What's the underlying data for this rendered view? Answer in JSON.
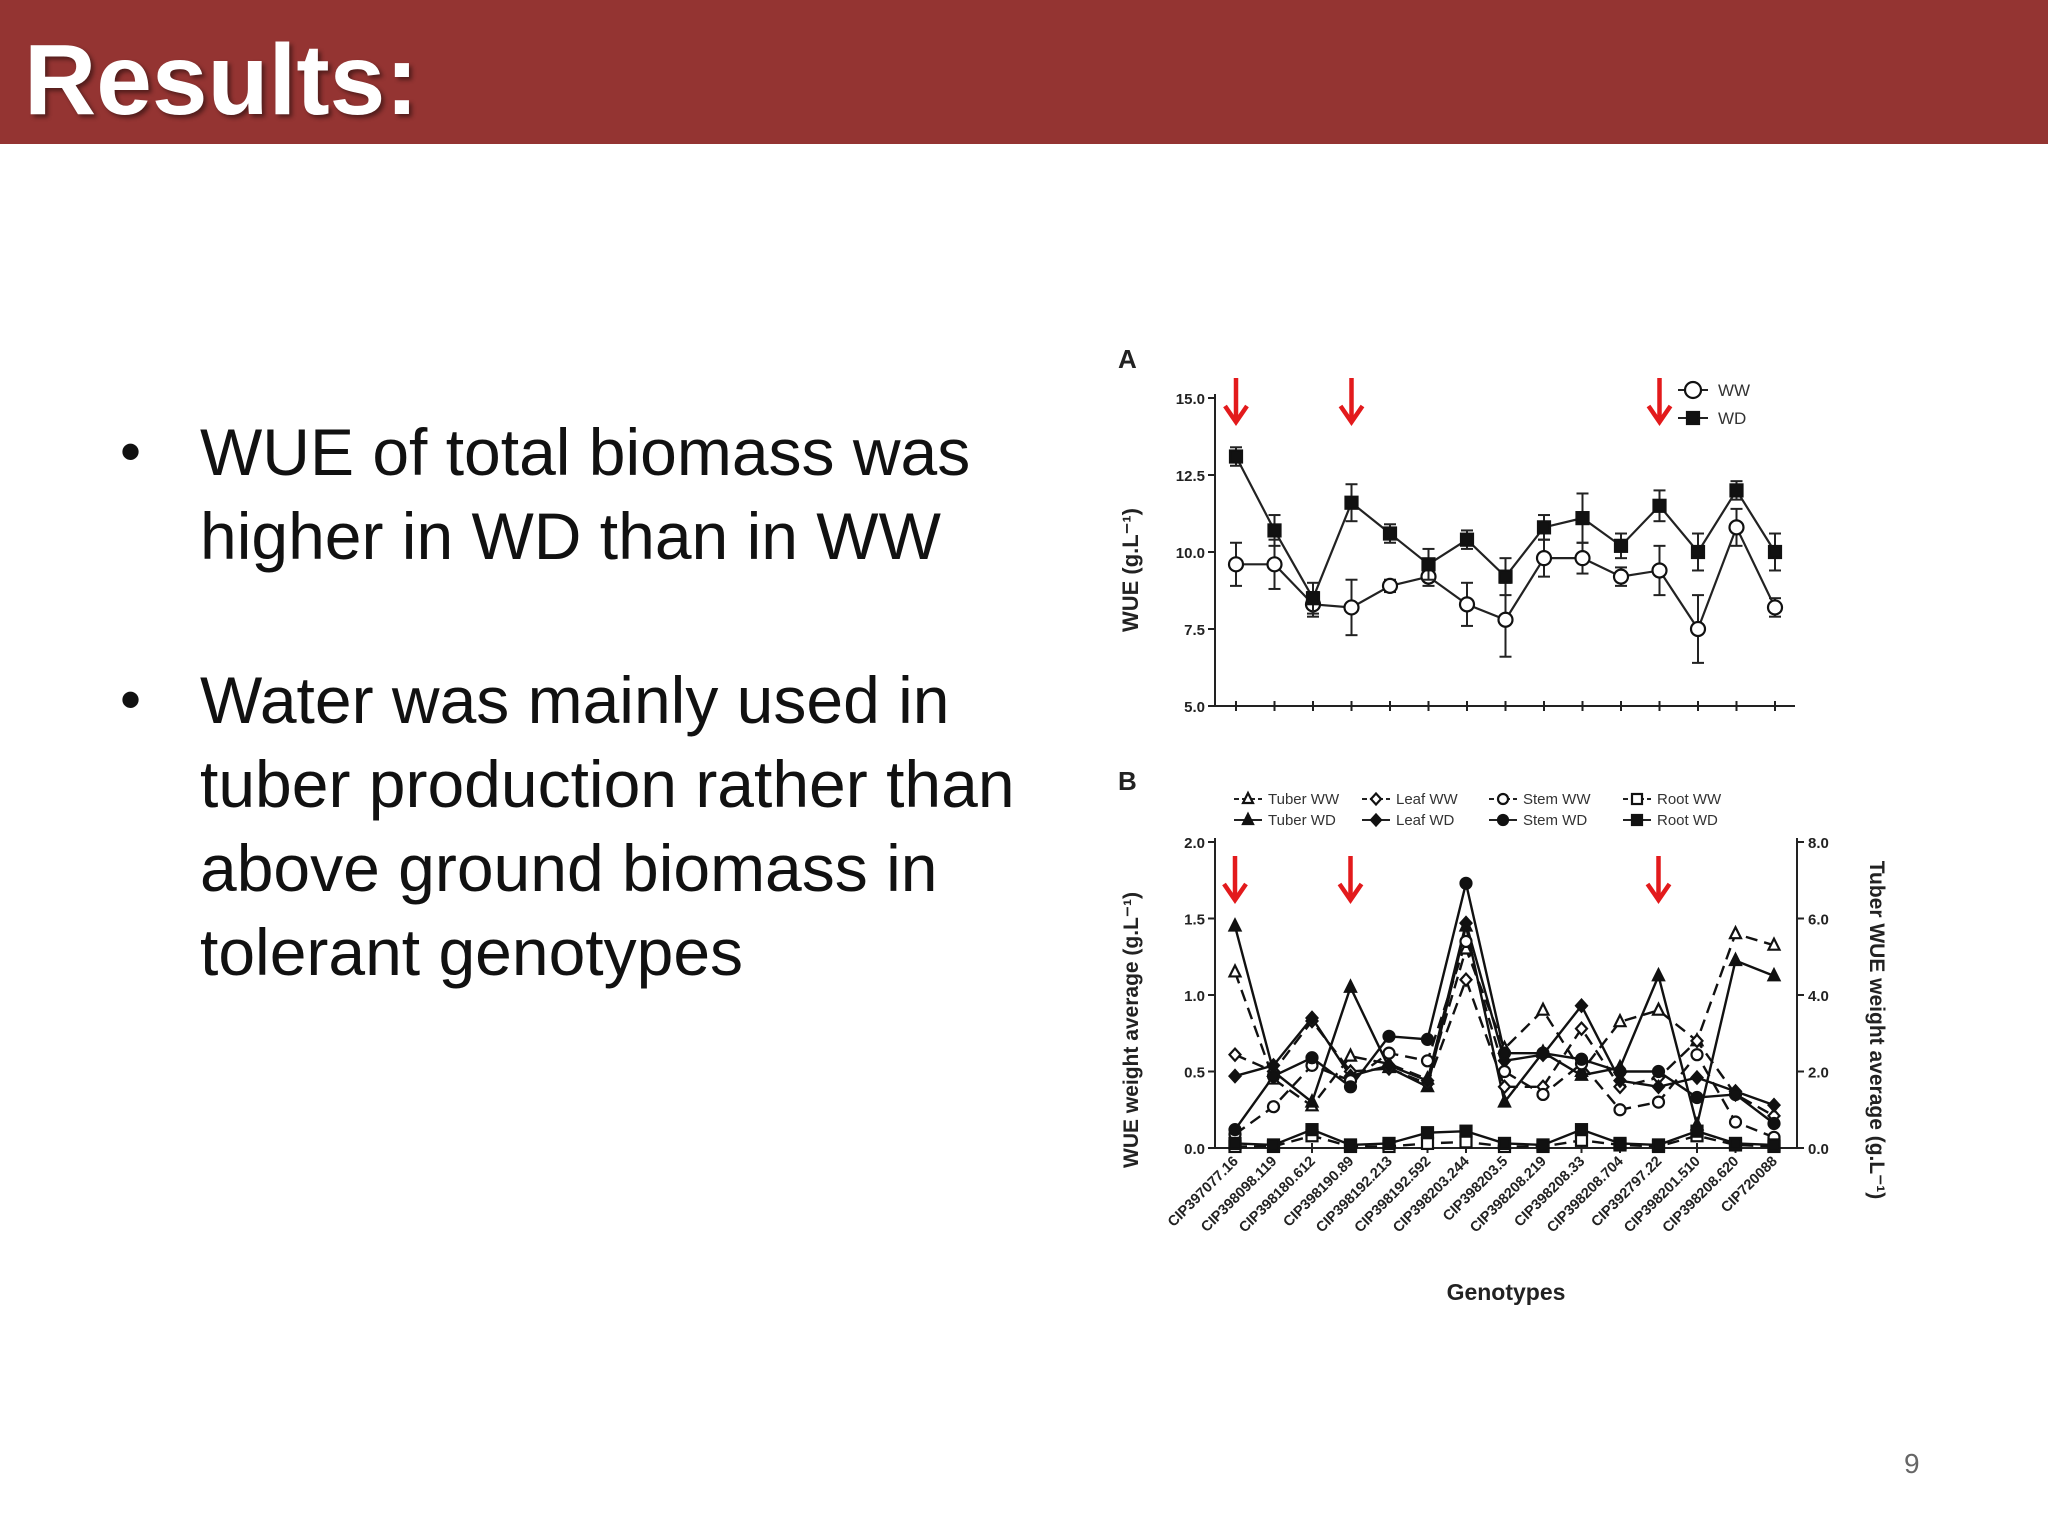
{
  "slide": {
    "title": "Results:",
    "bullets": [
      "WUE of total biomass was higher in WD than in WW",
      "Water was mainly used in tuber production rather than above ground biomass in tolerant genotypes"
    ],
    "page_number": "9"
  },
  "chart_data": [
    {
      "type": "line",
      "panel_label": "A",
      "ylabel": "WUE (g.L⁻¹)",
      "ylim": [
        5.0,
        15.0
      ],
      "yticks": [
        "15.0",
        "12.5",
        "10.0",
        "7.5",
        "5.0"
      ],
      "legend_position": "top-right",
      "series": [
        {
          "name": "WW",
          "marker": "open-circle",
          "values": [
            9.6,
            9.6,
            8.3,
            8.2,
            8.9,
            9.2,
            8.3,
            7.8,
            9.8,
            9.8,
            9.2,
            9.4,
            7.5,
            10.8,
            8.2
          ]
        },
        {
          "name": "WD",
          "marker": "filled-square",
          "values": [
            13.1,
            10.7,
            8.5,
            11.6,
            10.6,
            9.6,
            10.4,
            9.2,
            10.8,
            11.1,
            10.2,
            11.5,
            10.0,
            12.0,
            10.0
          ]
        }
      ],
      "errors": {
        "WW": [
          0.7,
          0.8,
          0.4,
          0.9,
          0.2,
          0.3,
          0.7,
          1.2,
          0.6,
          0.5,
          0.3,
          0.8,
          1.1,
          0.6,
          0.3
        ],
        "WD": [
          0.3,
          0.5,
          0.5,
          0.6,
          0.3,
          0.5,
          0.3,
          0.6,
          0.4,
          0.8,
          0.4,
          0.5,
          0.6,
          0.3,
          0.6
        ]
      },
      "highlight_indices": [
        0,
        3,
        11
      ],
      "arrow_color": "#e31a1c"
    },
    {
      "type": "line",
      "panel_label": "B",
      "xlabel": "Genotypes",
      "ylabel": "WUE weight average (g.L⁻¹)",
      "y2label": "Tuber WUE weight average (g.L⁻¹)",
      "ylim": [
        0.0,
        2.0
      ],
      "y2lim": [
        0.0,
        8.0
      ],
      "yticks": [
        "2.0",
        "1.5",
        "1.0",
        "0.5",
        "0.0"
      ],
      "y2ticks": [
        "8.0",
        "6.0",
        "4.0",
        "2.0",
        "0.0"
      ],
      "categories": [
        "CIP397077.16",
        "CIP398098.119",
        "CIP398180.612",
        "CIP398190.89",
        "CIP398192.213",
        "CIP398192.592",
        "CIP398203.244",
        "CIP398203.5",
        "CIP398208.219",
        "CIP398208.33",
        "CIP398208.704",
        "CIP392797.22",
        "CIP398201.510",
        "CIP398208.620",
        "CIP720088"
      ],
      "legend_position": "top",
      "series": [
        {
          "name": "Tuber WW",
          "axis": "right",
          "marker": "open-triangle",
          "dashed": true,
          "values": [
            4.6,
            1.8,
            1.1,
            2.4,
            2.2,
            1.8,
            5.2,
            2.6,
            3.6,
            2.0,
            3.3,
            3.6,
            2.8,
            5.6,
            5.3
          ]
        },
        {
          "name": "Tuber WD",
          "axis": "right",
          "marker": "filled-triangle",
          "dashed": false,
          "values": [
            5.8,
            2.0,
            1.2,
            4.2,
            2.1,
            1.6,
            5.8,
            1.2,
            2.5,
            1.9,
            2.1,
            4.5,
            0.6,
            4.9,
            4.5
          ]
        },
        {
          "name": "Leaf WW",
          "axis": "left",
          "marker": "open-diamond",
          "dashed": true,
          "values": [
            0.61,
            0.5,
            0.83,
            0.5,
            0.52,
            0.42,
            1.1,
            0.4,
            0.4,
            0.78,
            0.4,
            0.46,
            0.7,
            0.35,
            0.21
          ]
        },
        {
          "name": "Leaf WD",
          "axis": "left",
          "marker": "filled-diamond",
          "dashed": false,
          "values": [
            0.47,
            0.54,
            0.85,
            0.47,
            0.54,
            0.44,
            1.47,
            0.57,
            0.61,
            0.93,
            0.44,
            0.4,
            0.46,
            0.37,
            0.28
          ]
        },
        {
          "name": "Stem WW",
          "axis": "left",
          "marker": "open-circle",
          "dashed": true,
          "values": [
            0.09,
            0.27,
            0.54,
            0.44,
            0.62,
            0.57,
            1.35,
            0.5,
            0.35,
            0.55,
            0.25,
            0.3,
            0.61,
            0.17,
            0.07
          ]
        },
        {
          "name": "Stem WD",
          "axis": "left",
          "marker": "filled-circle",
          "dashed": false,
          "values": [
            0.12,
            0.47,
            0.59,
            0.4,
            0.73,
            0.71,
            1.73,
            0.62,
            0.62,
            0.58,
            0.5,
            0.5,
            0.33,
            0.35,
            0.16
          ]
        },
        {
          "name": "Root WW",
          "axis": "left",
          "marker": "open-square",
          "dashed": true,
          "values": [
            0.01,
            0.01,
            0.08,
            0.01,
            0.01,
            0.03,
            0.04,
            0.01,
            0.01,
            0.05,
            0.02,
            0.01,
            0.08,
            0.02,
            0.01
          ]
        },
        {
          "name": "Root WD",
          "axis": "left",
          "marker": "filled-square",
          "dashed": false,
          "values": [
            0.03,
            0.02,
            0.12,
            0.02,
            0.03,
            0.1,
            0.11,
            0.03,
            0.02,
            0.12,
            0.03,
            0.02,
            0.11,
            0.03,
            0.02
          ]
        }
      ],
      "highlight_indices": [
        0,
        3,
        11
      ],
      "arrow_color": "#e31a1c"
    }
  ]
}
